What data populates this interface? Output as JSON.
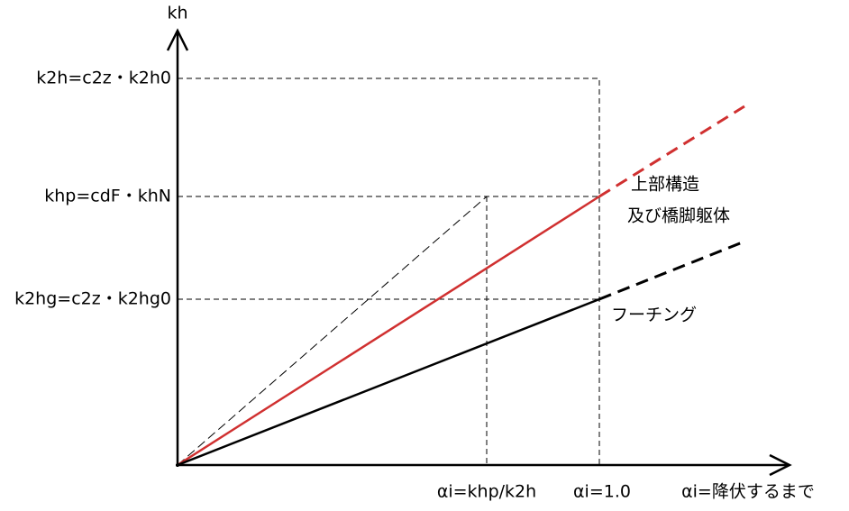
{
  "axes": {
    "y_label": "kh",
    "y_levels": [
      "k2h=c2z・k2h0",
      "khp=cdF・khN",
      "k2hg=c2z・k2hg0"
    ],
    "x_levels": [
      "αi=khp/k2h",
      "αi=1.0",
      "αi=降伏するまで"
    ]
  },
  "lines": [
    {
      "label": [
        "上部構造",
        "及び橋脚躯体"
      ]
    },
    {
      "label": [
        "フーチング"
      ]
    }
  ]
}
